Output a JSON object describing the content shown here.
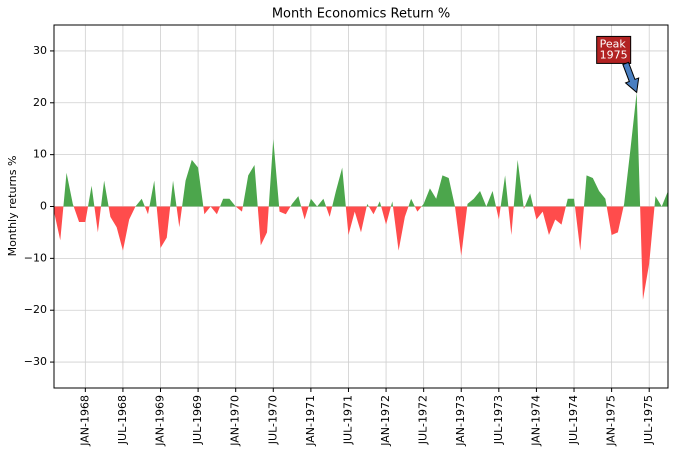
{
  "chart_data": {
    "type": "area",
    "title": "Month Economics Return %",
    "ylabel": "Monthly returns %",
    "x": [
      "1967-08",
      "1967-09",
      "1967-10",
      "1967-11",
      "1967-12",
      "1968-01",
      "1968-02",
      "1968-03",
      "1968-04",
      "1968-05",
      "1968-06",
      "1968-07",
      "1968-08",
      "1968-09",
      "1968-10",
      "1968-11",
      "1968-12",
      "1969-01",
      "1969-02",
      "1969-03",
      "1969-04",
      "1969-05",
      "1969-06",
      "1969-07",
      "1969-08",
      "1969-09",
      "1969-10",
      "1969-11",
      "1969-12",
      "1970-01",
      "1970-02",
      "1970-03",
      "1970-04",
      "1970-05",
      "1970-06",
      "1970-07",
      "1970-08",
      "1970-09",
      "1970-10",
      "1970-11",
      "1970-12",
      "1971-01",
      "1971-02",
      "1971-03",
      "1971-04",
      "1971-05",
      "1971-06",
      "1971-07",
      "1971-08",
      "1971-09",
      "1971-10",
      "1971-11",
      "1971-12",
      "1972-01",
      "1972-02",
      "1972-03",
      "1972-04",
      "1972-05",
      "1972-06",
      "1972-07",
      "1972-08",
      "1972-09",
      "1972-10",
      "1972-11",
      "1972-12",
      "1973-01",
      "1973-02",
      "1973-03",
      "1973-04",
      "1973-05",
      "1973-06",
      "1973-07",
      "1973-08",
      "1973-09",
      "1973-10",
      "1973-11",
      "1973-12",
      "1974-01",
      "1974-02",
      "1974-03",
      "1974-04",
      "1974-05",
      "1974-06",
      "1974-07",
      "1974-08",
      "1974-09",
      "1974-10",
      "1974-11",
      "1974-12",
      "1975-01",
      "1975-02",
      "1975-03",
      "1975-04",
      "1975-05",
      "1975-06",
      "1975-07",
      "1975-08",
      "1975-09",
      "1975-10"
    ],
    "values": [
      -1,
      -6.5,
      6.5,
      0.5,
      -3,
      -3,
      4,
      -5,
      5,
      -2,
      -4,
      -8.5,
      -2.5,
      0,
      1.5,
      -1.5,
      5,
      -8,
      -6,
      5,
      -4,
      5,
      9,
      7.5,
      -1.5,
      0,
      -1.5,
      1.5,
      1.5,
      0,
      -1,
      6,
      8,
      -7.5,
      -5,
      13,
      -1,
      -1.5,
      0.5,
      2,
      -2.5,
      1.5,
      0,
      1.5,
      -2,
      3,
      7.5,
      -5.5,
      -1,
      -5,
      0.5,
      -1.5,
      1,
      -3.5,
      1,
      -8.5,
      -2,
      1.5,
      -1,
      0.5,
      3.5,
      1.5,
      6,
      5.5,
      0,
      -9.5,
      0.5,
      1.5,
      3,
      0,
      3,
      -2.5,
      6,
      -5.5,
      9,
      -0.5,
      2.5,
      -2.5,
      -1,
      -5.5,
      -2.5,
      -3.5,
      1.5,
      1.5,
      -8.5,
      6,
      5.5,
      3,
      1.5,
      -5.5,
      -5,
      0.5,
      11,
      22,
      -18,
      -11,
      2,
      0,
      3
    ],
    "positive_color": "#4ca64c",
    "negative_color": "#ff4c4c",
    "xlim": [
      "1967-08",
      "1975-10"
    ],
    "xticks": [
      {
        "value": "1968-01",
        "label": "JAN-1968"
      },
      {
        "value": "1968-07",
        "label": "JUL-1968"
      },
      {
        "value": "1969-01",
        "label": "JAN-1969"
      },
      {
        "value": "1969-07",
        "label": "JUL-1969"
      },
      {
        "value": "1970-01",
        "label": "JAN-1970"
      },
      {
        "value": "1970-07",
        "label": "JUL-1970"
      },
      {
        "value": "1971-01",
        "label": "JAN-1971"
      },
      {
        "value": "1971-07",
        "label": "JUL-1971"
      },
      {
        "value": "1972-01",
        "label": "JAN-1972"
      },
      {
        "value": "1972-07",
        "label": "JUL-1972"
      },
      {
        "value": "1973-01",
        "label": "JAN-1973"
      },
      {
        "value": "1973-07",
        "label": "JUL-1973"
      },
      {
        "value": "1974-01",
        "label": "JAN-1974"
      },
      {
        "value": "1974-07",
        "label": "JUL-1974"
      },
      {
        "value": "1975-01",
        "label": "JAN-1975"
      },
      {
        "value": "1975-07",
        "label": "JUL-1975"
      }
    ],
    "ylim": [
      -35,
      35
    ],
    "yticks": [
      {
        "value": -30,
        "label": "−30"
      },
      {
        "value": -20,
        "label": "−20"
      },
      {
        "value": -10,
        "label": "−10"
      },
      0,
      10,
      20,
      30
    ],
    "grid": true,
    "annotation": {
      "lines": [
        "Peak",
        "1975"
      ],
      "box_color": "#b22222",
      "arrow_color": "#4a7fc1"
    }
  }
}
